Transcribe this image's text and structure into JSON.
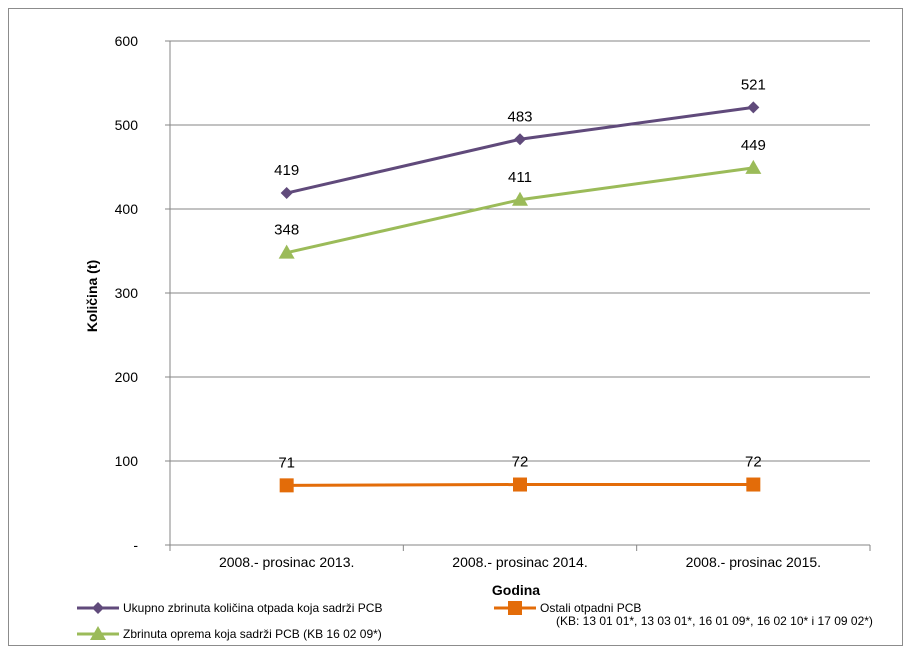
{
  "chart_data": {
    "type": "line",
    "xlabel": "Godina",
    "ylabel": "Količina (t)",
    "categories": [
      "2008.- prosinac 2013.",
      "2008.- prosinac 2014.",
      "2008.- prosinac 2015."
    ],
    "ylim": [
      0,
      600
    ],
    "yticks": [
      "-",
      "100",
      "200",
      "300",
      "400",
      "500",
      "600"
    ],
    "grid": true,
    "legend_position": "bottom",
    "series": [
      {
        "name": "Ukupno zbrinuta količina otpada koja sadrži PCB",
        "values": [
          419,
          483,
          521
        ],
        "labels": [
          "419",
          "483",
          "521"
        ],
        "color": "#604a7b",
        "marker": "diamond"
      },
      {
        "name": "Zbrinuta oprema koja sadrži PCB (KB 16 02 09*)",
        "values": [
          348,
          411,
          449
        ],
        "labels": [
          "348",
          "411",
          "449"
        ],
        "color": "#9bbb59",
        "marker": "triangle"
      },
      {
        "name": "Ostali otpadni PCB",
        "name_line2": "(KB: 13 01 01*, 13 03 01*, 16 01 09*, 16 02 10* i 17 09 02*)",
        "values": [
          71,
          72,
          72
        ],
        "labels": [
          "71",
          "72",
          "72"
        ],
        "color": "#e36c09",
        "marker": "square"
      }
    ]
  }
}
